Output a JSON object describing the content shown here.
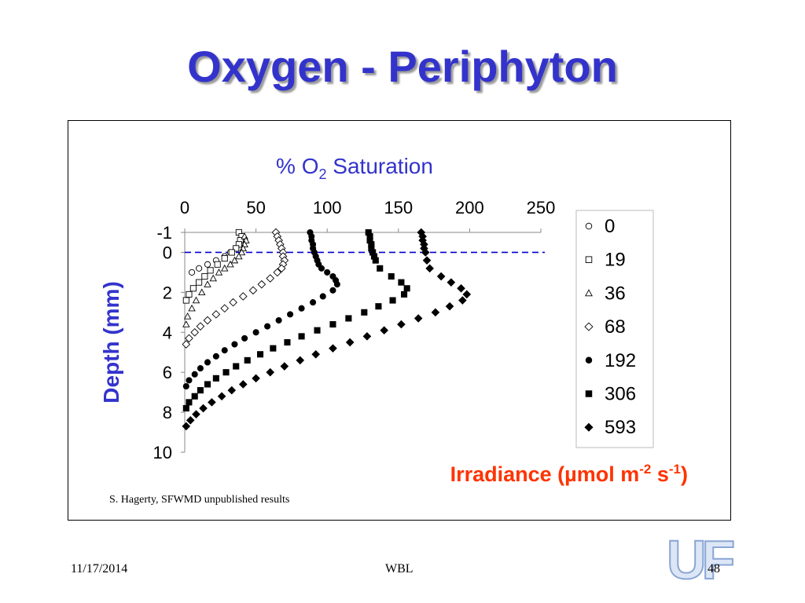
{
  "slide": {
    "title": "Oxygen - Periphyton",
    "footer_date": "11/17/2014",
    "footer_center": "WBL",
    "page_number": "48",
    "logo_text": "UF"
  },
  "chart_data": {
    "type": "scatter",
    "x_axis": {
      "title_prefix": "% O",
      "title_sub": "2",
      "title_suffix": " Saturation",
      "position": "top",
      "range": [
        0,
        250
      ],
      "ticks": [
        0,
        50,
        100,
        150,
        200,
        250
      ],
      "tick_labels": [
        "0",
        "50",
        "100",
        "150",
        "200",
        "250"
      ]
    },
    "y_axis": {
      "title": "Depth (mm)",
      "range": [
        -1,
        10
      ],
      "inverted": true,
      "ticks": [
        -1,
        0,
        2,
        4,
        6,
        8,
        10
      ],
      "tick_labels": [
        "-1",
        "0",
        "2",
        "4",
        "6",
        "8",
        "10"
      ]
    },
    "surface_line_depth": 0,
    "irradiance_label": {
      "prefix": "Irradiance  (µmol m",
      "sup1": "-2",
      "mid": " s",
      "sup2": "-1",
      "suffix": ")"
    },
    "legend_position": "right",
    "source_note": "S. Hagerty, SFWMD unpublished results",
    "colors": {
      "axis_title": "#3333cc",
      "irradiance": "#ff3300",
      "surface_line": "#0000cc",
      "points": "#000000"
    },
    "series": [
      {
        "name": "0",
        "marker": "circle-open",
        "points": [
          [
            40,
            -0.8
          ],
          [
            42,
            -0.6
          ],
          [
            40,
            -0.4
          ],
          [
            36,
            -0.2
          ],
          [
            32,
            0
          ],
          [
            28,
            0.2
          ],
          [
            22,
            0.4
          ],
          [
            16,
            0.6
          ],
          [
            10,
            0.8
          ],
          [
            5,
            1.0
          ]
        ]
      },
      {
        "name": "19",
        "marker": "square-open",
        "points": [
          [
            38,
            -1.0
          ],
          [
            40,
            -0.8
          ],
          [
            39,
            -0.6
          ],
          [
            38,
            -0.4
          ],
          [
            36,
            -0.2
          ],
          [
            33,
            0
          ],
          [
            28,
            0.3
          ],
          [
            23,
            0.6
          ],
          [
            18,
            0.9
          ],
          [
            14,
            1.2
          ],
          [
            10,
            1.5
          ],
          [
            6,
            1.8
          ],
          [
            3,
            2.1
          ],
          [
            1,
            2.4
          ]
        ]
      },
      {
        "name": "36",
        "marker": "triangle-open",
        "points": [
          [
            42,
            -0.8
          ],
          [
            43,
            -0.6
          ],
          [
            42,
            -0.4
          ],
          [
            41,
            -0.2
          ],
          [
            40,
            0
          ],
          [
            38,
            0.2
          ],
          [
            35,
            0.4
          ],
          [
            32,
            0.6
          ],
          [
            28,
            0.8
          ],
          [
            24,
            1.0
          ],
          [
            20,
            1.3
          ],
          [
            16,
            1.6
          ],
          [
            12,
            2.0
          ],
          [
            8,
            2.4
          ],
          [
            5,
            2.8
          ],
          [
            2,
            3.2
          ],
          [
            1,
            3.6
          ]
        ]
      },
      {
        "name": "68",
        "marker": "diamond-open",
        "points": [
          [
            64,
            -1.0
          ],
          [
            65,
            -0.8
          ],
          [
            66,
            -0.6
          ],
          [
            67,
            -0.4
          ],
          [
            68,
            -0.2
          ],
          [
            69,
            0
          ],
          [
            69,
            0.2
          ],
          [
            70,
            0.4
          ],
          [
            69,
            0.6
          ],
          [
            68,
            0.8
          ],
          [
            65,
            1.0
          ],
          [
            60,
            1.3
          ],
          [
            54,
            1.6
          ],
          [
            48,
            1.9
          ],
          [
            41,
            2.2
          ],
          [
            34,
            2.5
          ],
          [
            28,
            2.8
          ],
          [
            22,
            3.1
          ],
          [
            16,
            3.4
          ],
          [
            11,
            3.7
          ],
          [
            7,
            4.0
          ],
          [
            3,
            4.3
          ],
          [
            1,
            4.6
          ]
        ]
      },
      {
        "name": "192",
        "marker": "circle-filled",
        "points": [
          [
            88,
            -1.0
          ],
          [
            89,
            -0.8
          ],
          [
            89,
            -0.6
          ],
          [
            90,
            -0.4
          ],
          [
            90,
            -0.2
          ],
          [
            91,
            0
          ],
          [
            92,
            0.2
          ],
          [
            93,
            0.4
          ],
          [
            94,
            0.6
          ],
          [
            96,
            0.8
          ],
          [
            100,
            1.0
          ],
          [
            104,
            1.2
          ],
          [
            106,
            1.4
          ],
          [
            107,
            1.6
          ],
          [
            104,
            1.9
          ],
          [
            97,
            2.2
          ],
          [
            90,
            2.5
          ],
          [
            82,
            2.8
          ],
          [
            74,
            3.1
          ],
          [
            66,
            3.4
          ],
          [
            58,
            3.7
          ],
          [
            50,
            4.0
          ],
          [
            42,
            4.3
          ],
          [
            35,
            4.6
          ],
          [
            28,
            4.9
          ],
          [
            22,
            5.2
          ],
          [
            16,
            5.5
          ],
          [
            11,
            5.8
          ],
          [
            7,
            6.1
          ],
          [
            3,
            6.4
          ],
          [
            1,
            6.7
          ]
        ]
      },
      {
        "name": "306",
        "marker": "square-filled",
        "points": [
          [
            129,
            -1.0
          ],
          [
            130,
            -0.8
          ],
          [
            130,
            -0.6
          ],
          [
            131,
            -0.4
          ],
          [
            131,
            -0.2
          ],
          [
            132,
            0
          ],
          [
            133,
            0.2
          ],
          [
            134,
            0.4
          ],
          [
            137,
            0.8
          ],
          [
            145,
            1.2
          ],
          [
            152,
            1.5
          ],
          [
            156,
            1.8
          ],
          [
            154,
            2.1
          ],
          [
            146,
            2.4
          ],
          [
            136,
            2.7
          ],
          [
            126,
            3.0
          ],
          [
            115,
            3.3
          ],
          [
            104,
            3.6
          ],
          [
            93,
            3.9
          ],
          [
            82,
            4.2
          ],
          [
            72,
            4.5
          ],
          [
            62,
            4.8
          ],
          [
            53,
            5.1
          ],
          [
            44,
            5.4
          ],
          [
            36,
            5.7
          ],
          [
            29,
            6.0
          ],
          [
            22,
            6.3
          ],
          [
            16,
            6.6
          ],
          [
            11,
            6.9
          ],
          [
            7,
            7.2
          ],
          [
            3,
            7.5
          ],
          [
            1,
            7.8
          ]
        ]
      },
      {
        "name": "593",
        "marker": "diamond-filled",
        "points": [
          [
            166,
            -1.0
          ],
          [
            167,
            -0.8
          ],
          [
            167,
            -0.6
          ],
          [
            168,
            -0.4
          ],
          [
            168,
            -0.2
          ],
          [
            169,
            0
          ],
          [
            170,
            0.4
          ],
          [
            172,
            0.8
          ],
          [
            180,
            1.2
          ],
          [
            187,
            1.5
          ],
          [
            194,
            1.8
          ],
          [
            198,
            2.1
          ],
          [
            195,
            2.4
          ],
          [
            186,
            2.7
          ],
          [
            176,
            3.0
          ],
          [
            164,
            3.3
          ],
          [
            152,
            3.6
          ],
          [
            140,
            3.9
          ],
          [
            128,
            4.2
          ],
          [
            116,
            4.5
          ],
          [
            104,
            4.8
          ],
          [
            92,
            5.1
          ],
          [
            81,
            5.4
          ],
          [
            70,
            5.7
          ],
          [
            60,
            6.0
          ],
          [
            50,
            6.3
          ],
          [
            41,
            6.6
          ],
          [
            33,
            6.9
          ],
          [
            26,
            7.2
          ],
          [
            19,
            7.5
          ],
          [
            13,
            7.8
          ],
          [
            8,
            8.1
          ],
          [
            4,
            8.4
          ],
          [
            1,
            8.7
          ]
        ]
      }
    ]
  }
}
